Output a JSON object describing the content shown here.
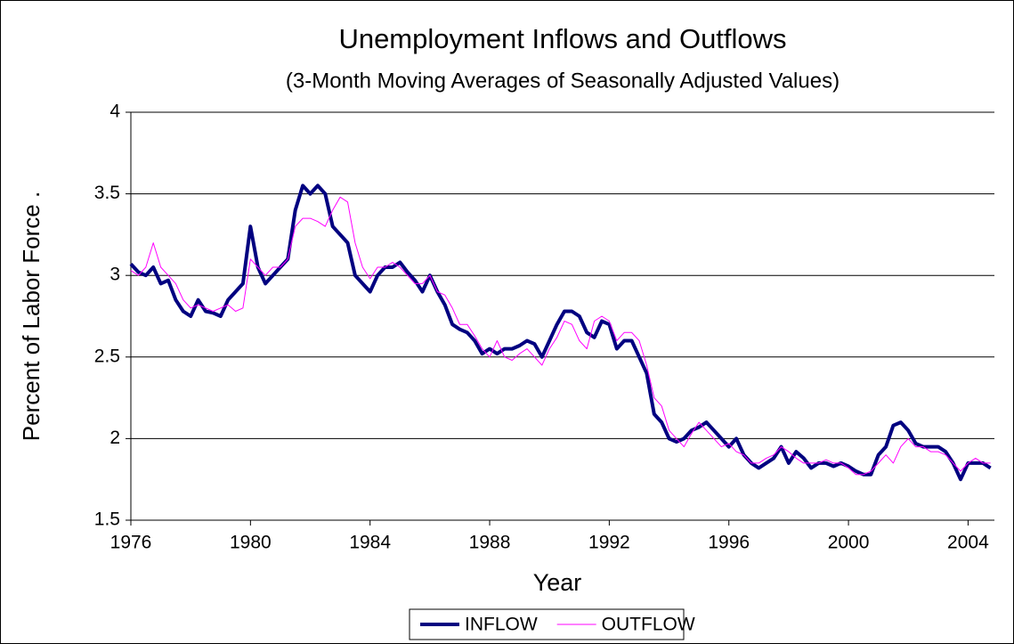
{
  "chart_data": {
    "type": "line",
    "title": "Unemployment Inflows and Outflows",
    "subtitle": "(3-Month Moving Averages of Seasonally Adjusted Values)",
    "x_label": "Year",
    "y_label": "Percent of Labor Force .",
    "xlim": [
      1976,
      2005
    ],
    "xticks": [
      1976,
      1980,
      1984,
      1988,
      1992,
      1996,
      2000,
      2004
    ],
    "ylim": [
      1.5,
      4
    ],
    "yticks": [
      1.5,
      2,
      2.5,
      3,
      3.5,
      4
    ],
    "grid": true,
    "legend": "bottom",
    "x": [
      1976,
      1976.25,
      1976.5,
      1976.75,
      1977,
      1977.25,
      1977.5,
      1977.75,
      1978,
      1978.25,
      1978.5,
      1978.75,
      1979,
      1979.25,
      1979.5,
      1979.75,
      1980,
      1980.25,
      1980.5,
      1980.75,
      1981,
      1981.25,
      1981.5,
      1981.75,
      1982,
      1982.25,
      1982.5,
      1982.75,
      1983,
      1983.25,
      1983.5,
      1983.75,
      1984,
      1984.25,
      1984.5,
      1984.75,
      1985,
      1985.25,
      1985.5,
      1985.75,
      1986,
      1986.25,
      1986.5,
      1986.75,
      1987,
      1987.25,
      1987.5,
      1987.75,
      1988,
      1988.25,
      1988.5,
      1988.75,
      1989,
      1989.25,
      1989.5,
      1989.75,
      1990,
      1990.25,
      1990.5,
      1990.75,
      1991,
      1991.25,
      1991.5,
      1991.75,
      1992,
      1992.25,
      1992.5,
      1992.75,
      1993,
      1993.25,
      1993.5,
      1993.75,
      1994,
      1994.25,
      1994.5,
      1994.75,
      1995,
      1995.25,
      1995.5,
      1995.75,
      1996,
      1996.25,
      1996.5,
      1996.75,
      1997,
      1997.25,
      1997.5,
      1997.75,
      1998,
      1998.25,
      1998.5,
      1998.75,
      1999,
      1999.25,
      1999.5,
      1999.75,
      2000,
      2000.25,
      2000.5,
      2000.75,
      2001,
      2001.25,
      2001.5,
      2001.75,
      2002,
      2002.25,
      2002.5,
      2002.75,
      2003,
      2003.25,
      2003.5,
      2003.75,
      2004,
      2004.25,
      2004.5,
      2004.75
    ],
    "series": [
      {
        "name": "INFLOW",
        "color": "#000080",
        "width": 4,
        "values": [
          3.07,
          3.02,
          3.0,
          3.05,
          2.95,
          2.97,
          2.85,
          2.78,
          2.75,
          2.85,
          2.78,
          2.77,
          2.75,
          2.85,
          2.9,
          2.95,
          3.3,
          3.05,
          2.95,
          3.0,
          3.05,
          3.1,
          3.4,
          3.55,
          3.5,
          3.55,
          3.5,
          3.3,
          3.25,
          3.2,
          3.0,
          2.95,
          2.9,
          3.0,
          3.05,
          3.05,
          3.08,
          3.02,
          2.97,
          2.9,
          3.0,
          2.9,
          2.82,
          2.7,
          2.67,
          2.65,
          2.6,
          2.52,
          2.55,
          2.52,
          2.55,
          2.55,
          2.57,
          2.6,
          2.58,
          2.5,
          2.6,
          2.7,
          2.78,
          2.78,
          2.75,
          2.65,
          2.62,
          2.72,
          2.7,
          2.55,
          2.6,
          2.6,
          2.5,
          2.4,
          2.15,
          2.1,
          2.0,
          1.98,
          2.0,
          2.05,
          2.07,
          2.1,
          2.05,
          2.0,
          1.95,
          2.0,
          1.9,
          1.85,
          1.82,
          1.85,
          1.88,
          1.95,
          1.85,
          1.92,
          1.88,
          1.82,
          1.85,
          1.85,
          1.83,
          1.85,
          1.83,
          1.8,
          1.78,
          1.78,
          1.9,
          1.95,
          2.08,
          2.1,
          2.05,
          1.97,
          1.95,
          1.95,
          1.95,
          1.92,
          1.85,
          1.75,
          1.85,
          1.85,
          1.85,
          1.82
        ]
      },
      {
        "name": "OUTFLOW",
        "color": "#ff00ff",
        "width": 1,
        "values": [
          3.03,
          3.0,
          3.05,
          3.2,
          3.05,
          3.0,
          2.95,
          2.85,
          2.8,
          2.82,
          2.8,
          2.78,
          2.8,
          2.82,
          2.78,
          2.8,
          3.1,
          3.05,
          3.0,
          3.05,
          3.05,
          3.1,
          3.3,
          3.35,
          3.35,
          3.33,
          3.3,
          3.4,
          3.48,
          3.45,
          3.2,
          3.05,
          2.98,
          3.05,
          3.05,
          3.08,
          3.05,
          3.0,
          2.95,
          2.95,
          3.0,
          2.9,
          2.88,
          2.8,
          2.7,
          2.7,
          2.63,
          2.55,
          2.5,
          2.6,
          2.5,
          2.48,
          2.52,
          2.55,
          2.5,
          2.45,
          2.55,
          2.62,
          2.72,
          2.7,
          2.6,
          2.55,
          2.72,
          2.75,
          2.72,
          2.6,
          2.65,
          2.65,
          2.6,
          2.45,
          2.25,
          2.2,
          2.05,
          2.0,
          1.95,
          2.03,
          2.1,
          2.05,
          2.0,
          1.95,
          1.97,
          1.92,
          1.9,
          1.85,
          1.85,
          1.88,
          1.9,
          1.95,
          1.92,
          1.88,
          1.85,
          1.85,
          1.85,
          1.87,
          1.85,
          1.85,
          1.82,
          1.78,
          1.78,
          1.8,
          1.85,
          1.9,
          1.85,
          1.95,
          2.0,
          1.95,
          1.95,
          1.92,
          1.92,
          1.9,
          1.85,
          1.8,
          1.85,
          1.88,
          1.85,
          1.85
        ]
      }
    ]
  }
}
